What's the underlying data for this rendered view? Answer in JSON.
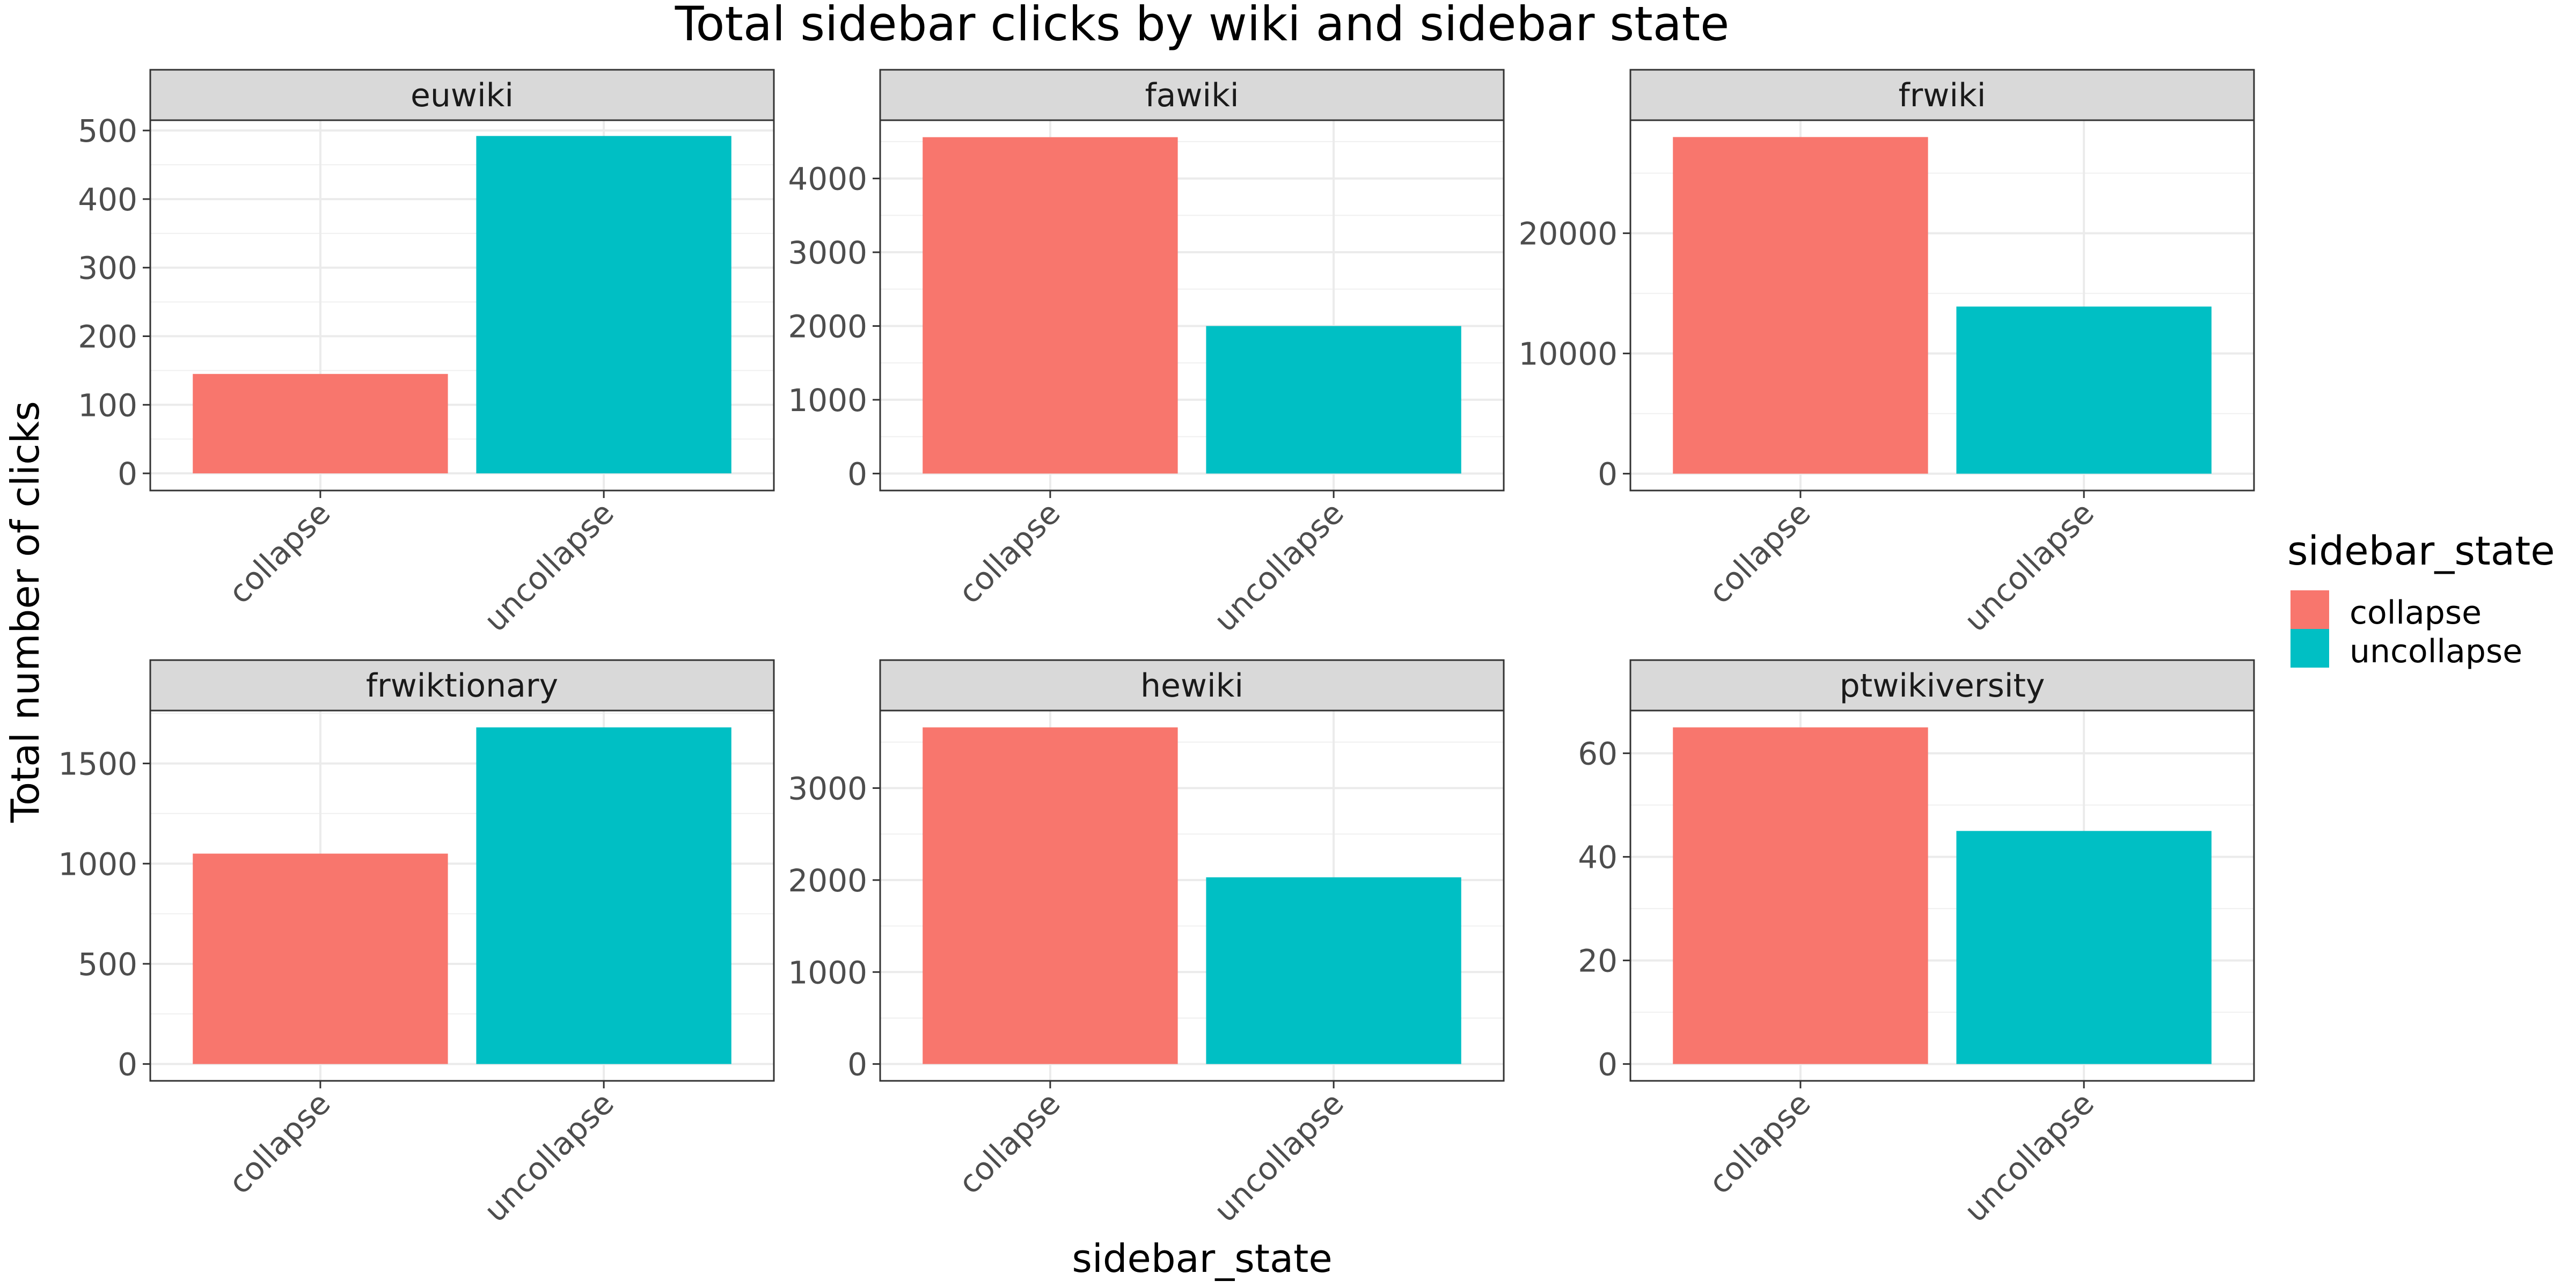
{
  "chart_data": {
    "type": "bar",
    "title": "Total sidebar clicks by wiki and sidebar state",
    "xlabel": "sidebar_state",
    "ylabel": "Total number of clicks",
    "categories": [
      "collapse",
      "uncollapse"
    ],
    "legend": {
      "title": "sidebar_state",
      "position": "right",
      "entries": [
        {
          "label": "collapse",
          "color": "#F8766D"
        },
        {
          "label": "uncollapse",
          "color": "#00BFC4"
        }
      ]
    },
    "grid": true,
    "facets": [
      {
        "name": "euwiki",
        "values": [
          145,
          492
        ],
        "ylim": [
          -25,
          515
        ],
        "yticks": [
          0,
          100,
          200,
          300,
          400,
          500
        ]
      },
      {
        "name": "fawiki",
        "values": [
          4560,
          2000
        ],
        "ylim": [
          -230,
          4790
        ],
        "yticks": [
          0,
          1000,
          2000,
          3000,
          4000
        ]
      },
      {
        "name": "frwiki",
        "values": [
          28000,
          13900
        ],
        "ylim": [
          -1400,
          29400
        ],
        "yticks": [
          0,
          10000,
          20000
        ]
      },
      {
        "name": "frwiktionary",
        "values": [
          1050,
          1680
        ],
        "ylim": [
          -84,
          1764
        ],
        "yticks": [
          0,
          500,
          1000,
          1500
        ]
      },
      {
        "name": "hewiki",
        "values": [
          3660,
          2030
        ],
        "ylim": [
          -183,
          3843
        ],
        "yticks": [
          0,
          1000,
          2000,
          3000
        ]
      },
      {
        "name": "ptwikiversity",
        "values": [
          65,
          45
        ],
        "ylim": [
          -3.25,
          68.25
        ],
        "yticks": [
          0,
          20,
          40,
          60
        ]
      }
    ]
  }
}
